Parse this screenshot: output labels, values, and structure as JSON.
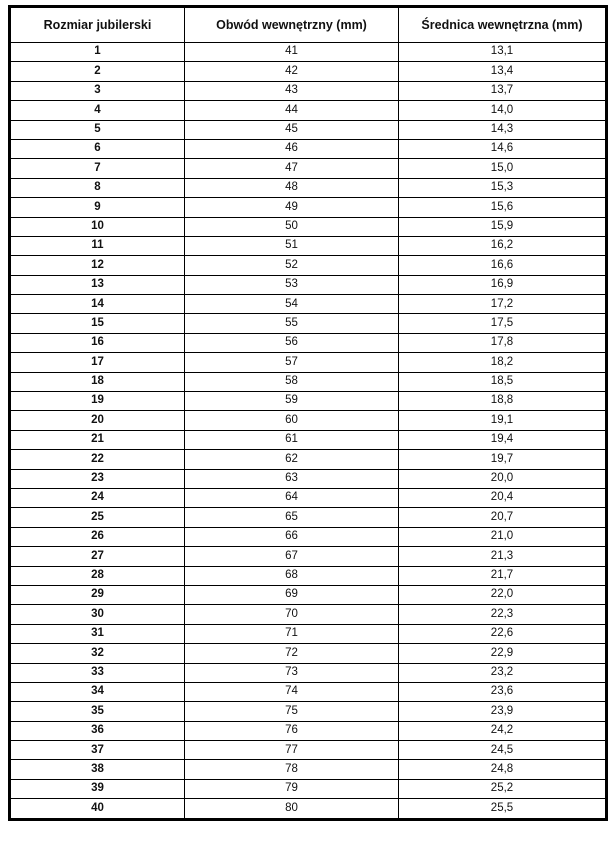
{
  "page": {
    "background": "#ffffff",
    "border_color": "#000000",
    "text_color": "#111111"
  },
  "table": {
    "columns": [
      "Rozmiar jubilerski",
      "Obwód wewnętrzny (mm)",
      "Średnica wewnętrzna (mm)"
    ],
    "rows": [
      [
        "1",
        "41",
        "13,1"
      ],
      [
        "2",
        "42",
        "13,4"
      ],
      [
        "3",
        "43",
        "13,7"
      ],
      [
        "4",
        "44",
        "14,0"
      ],
      [
        "5",
        "45",
        "14,3"
      ],
      [
        "6",
        "46",
        "14,6"
      ],
      [
        "7",
        "47",
        "15,0"
      ],
      [
        "8",
        "48",
        "15,3"
      ],
      [
        "9",
        "49",
        "15,6"
      ],
      [
        "10",
        "50",
        "15,9"
      ],
      [
        "11",
        "51",
        "16,2"
      ],
      [
        "12",
        "52",
        "16,6"
      ],
      [
        "13",
        "53",
        "16,9"
      ],
      [
        "14",
        "54",
        "17,2"
      ],
      [
        "15",
        "55",
        "17,5"
      ],
      [
        "16",
        "56",
        "17,8"
      ],
      [
        "17",
        "57",
        "18,2"
      ],
      [
        "18",
        "58",
        "18,5"
      ],
      [
        "19",
        "59",
        "18,8"
      ],
      [
        "20",
        "60",
        "19,1"
      ],
      [
        "21",
        "61",
        "19,4"
      ],
      [
        "22",
        "62",
        "19,7"
      ],
      [
        "23",
        "63",
        "20,0"
      ],
      [
        "24",
        "64",
        "20,4"
      ],
      [
        "25",
        "65",
        "20,7"
      ],
      [
        "26",
        "66",
        "21,0"
      ],
      [
        "27",
        "67",
        "21,3"
      ],
      [
        "28",
        "68",
        "21,7"
      ],
      [
        "29",
        "69",
        "22,0"
      ],
      [
        "30",
        "70",
        "22,3"
      ],
      [
        "31",
        "71",
        "22,6"
      ],
      [
        "32",
        "72",
        "22,9"
      ],
      [
        "33",
        "73",
        "23,2"
      ],
      [
        "34",
        "74",
        "23,6"
      ],
      [
        "35",
        "75",
        "23,9"
      ],
      [
        "36",
        "76",
        "24,2"
      ],
      [
        "37",
        "77",
        "24,5"
      ],
      [
        "38",
        "78",
        "24,8"
      ],
      [
        "39",
        "79",
        "25,2"
      ],
      [
        "40",
        "80",
        "25,5"
      ]
    ]
  }
}
